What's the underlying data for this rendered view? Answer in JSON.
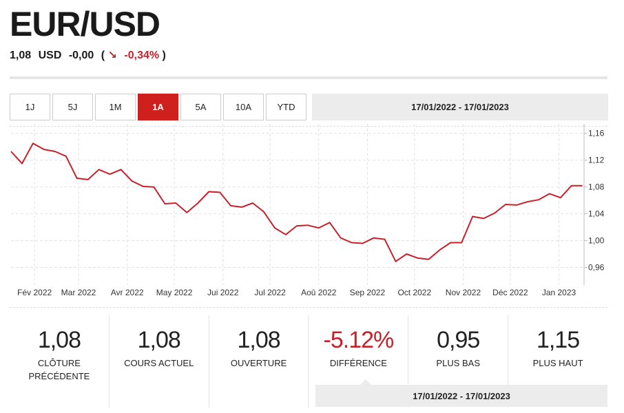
{
  "header": {
    "title": "EUR/USD",
    "price": "1,08",
    "currency": "USD",
    "change": "-0,00",
    "change_pct": "-0,34%",
    "paren_open": "(",
    "paren_close": ")",
    "arrow": "↘"
  },
  "ranges": [
    {
      "label": "1J",
      "active": false
    },
    {
      "label": "5J",
      "active": false
    },
    {
      "label": "1M",
      "active": false
    },
    {
      "label": "1A",
      "active": true
    },
    {
      "label": "5A",
      "active": false
    },
    {
      "label": "10A",
      "active": false
    },
    {
      "label": "YTD",
      "active": false
    }
  ],
  "date_range": "17/01/2022 - 17/01/2023",
  "chart_data": {
    "type": "line",
    "title": "",
    "xlabel": "",
    "ylabel": "",
    "ylim": [
      0.94,
      1.17
    ],
    "yticks": [
      0.96,
      1.0,
      1.04,
      1.08,
      1.12,
      1.16
    ],
    "ytick_labels": [
      "0,96",
      "1,00",
      "1,04",
      "1,08",
      "1,12",
      "1,16"
    ],
    "xticks": [
      "Fév 2022",
      "Mar 2022",
      "Avr 2022",
      "May 2022",
      "Jui 2022",
      "Jul 2022",
      "Aoû 2022",
      "Sep 2022",
      "Oct 2022",
      "Nov 2022",
      "Déc 2022",
      "Jan 2023"
    ],
    "x_range": [
      "2022-01-17",
      "2023-01-17"
    ],
    "grid": true,
    "line_color": "#c8202a",
    "series": [
      {
        "x": [
          "2022-01-17",
          "2022-01-24",
          "2022-01-31",
          "2022-02-07",
          "2022-02-14",
          "2022-02-21",
          "2022-02-28",
          "2022-03-07",
          "2022-03-14",
          "2022-03-21",
          "2022-03-28",
          "2022-04-04",
          "2022-04-11",
          "2022-04-18",
          "2022-04-25",
          "2022-05-02",
          "2022-05-09",
          "2022-05-16",
          "2022-05-23",
          "2022-05-30",
          "2022-06-06",
          "2022-06-13",
          "2022-06-20",
          "2022-06-27",
          "2022-07-04",
          "2022-07-11",
          "2022-07-18",
          "2022-07-25",
          "2022-08-01",
          "2022-08-08",
          "2022-08-15",
          "2022-08-22",
          "2022-08-29",
          "2022-09-05",
          "2022-09-12",
          "2022-09-19",
          "2022-09-26",
          "2022-10-03",
          "2022-10-10",
          "2022-10-17",
          "2022-10-24",
          "2022-10-31",
          "2022-11-07",
          "2022-11-14",
          "2022-11-21",
          "2022-11-28",
          "2022-12-05",
          "2022-12-12",
          "2022-12-19",
          "2022-12-26",
          "2023-01-02",
          "2023-01-09",
          "2023-01-16"
        ],
        "values": [
          1.133,
          1.115,
          1.145,
          1.136,
          1.133,
          1.126,
          1.093,
          1.091,
          1.106,
          1.099,
          1.106,
          1.089,
          1.081,
          1.08,
          1.055,
          1.056,
          1.042,
          1.056,
          1.073,
          1.072,
          1.052,
          1.05,
          1.056,
          1.043,
          1.019,
          1.009,
          1.022,
          1.023,
          1.019,
          1.027,
          1.004,
          0.997,
          0.996,
          1.004,
          1.002,
          0.969,
          0.98,
          0.974,
          0.972,
          0.986,
          0.997,
          0.997,
          1.036,
          1.033,
          1.041,
          1.054,
          1.053,
          1.058,
          1.061,
          1.07,
          1.064,
          1.082,
          1.082
        ]
      }
    ]
  },
  "stats": [
    {
      "value": "1,08",
      "label": "CLÔTURE PRÉCÉDENTE",
      "negative": false
    },
    {
      "value": "1,08",
      "label": "COURS ACTUEL",
      "negative": false
    },
    {
      "value": "1,08",
      "label": "OUVERTURE",
      "negative": false
    },
    {
      "value": "-5.12%",
      "label": "DIFFÉRENCE",
      "negative": true
    },
    {
      "value": "0,95",
      "label": "PLUS BAS",
      "negative": false
    },
    {
      "value": "1,15",
      "label": "PLUS HAUT",
      "negative": false
    }
  ],
  "stats_date_range": "17/01/2022 - 17/01/2023"
}
